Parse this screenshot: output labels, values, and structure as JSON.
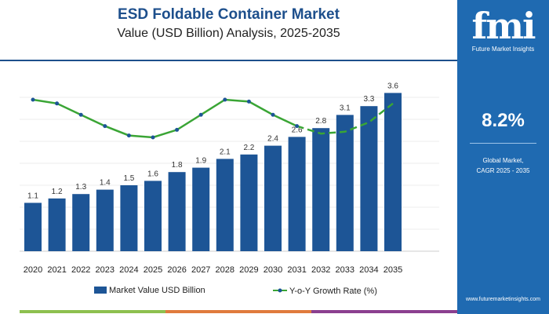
{
  "header": {
    "title": "ESD Foldable Container Market",
    "subtitle": "Value (USD Billion) Analysis, 2025-2035"
  },
  "panel": {
    "logo": "fmi",
    "logo_sub": "Future Market Insights",
    "cagr": "8.2%",
    "cagr_label_1": "Global Market,",
    "cagr_label_2": "CAGR 2025 - 2035",
    "website": "www.futuremarketinsights.com"
  },
  "colors": {
    "bar": "#1d5596",
    "line": "#3aa535",
    "panel": "#1f6ab1",
    "strip": [
      "#8dc04f",
      "#e07a3c",
      "#8b3f8f"
    ]
  },
  "chart_data": {
    "type": "bar+line",
    "categories": [
      "2020",
      "2021",
      "2022",
      "2023",
      "2024",
      "2025",
      "2026",
      "2027",
      "2028",
      "2029",
      "2030",
      "2031",
      "2032",
      "2033",
      "2034",
      "2035"
    ],
    "series": [
      {
        "name": "Market Value USD Billion",
        "type": "bar",
        "values": [
          1.1,
          1.2,
          1.3,
          1.4,
          1.5,
          1.6,
          1.8,
          1.9,
          2.1,
          2.2,
          2.4,
          2.6,
          2.8,
          3.1,
          3.3,
          3.6
        ],
        "labels": [
          "1.1",
          "1.2",
          "1.3",
          "1.4",
          "1.5",
          "1.6",
          "1.8",
          "1.9",
          "2.1",
          "2.2",
          "2.4",
          "2.6",
          "2.8",
          "3.1",
          "3.3",
          "3.6"
        ]
      },
      {
        "name": "Y-o-Y Growth Rate (%)",
        "type": "line",
        "values": [
          9.0,
          8.9,
          8.6,
          8.3,
          8.05,
          8.0,
          8.2,
          8.6,
          9.0,
          8.95,
          8.6,
          8.3,
          8.1,
          8.15,
          8.4,
          8.9
        ],
        "dashed_from": "2031"
      }
    ],
    "ylim": [
      0,
      4
    ],
    "grid": true,
    "legend": "bottom"
  }
}
